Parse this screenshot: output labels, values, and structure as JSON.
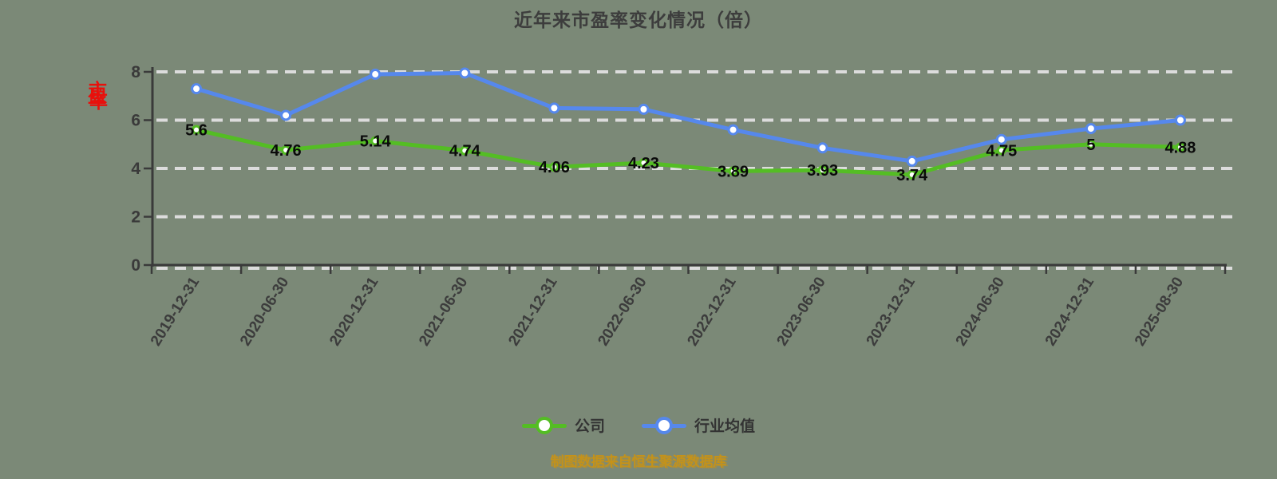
{
  "title": {
    "text": "近年来市盈率变化情况（倍）"
  },
  "y_axis_stamp": {
    "chars": [
      "市",
      "盈",
      "率"
    ],
    "color": "#e8100c"
  },
  "legend": {
    "items": [
      {
        "label": "公司",
        "color": "#54bd24"
      },
      {
        "label": "行业均值",
        "color": "#5688ec"
      }
    ]
  },
  "footer": {
    "source_note": "制图数据来自恒生聚源数据库"
  },
  "colors": {
    "background": "#7b8977",
    "company_line": "#54bd24",
    "industry_line": "#5688ec",
    "grid_dash": "#dcdcdc",
    "axis": "#3a3a3a",
    "title_text": "#3d3d3d",
    "data_label": "#0a0a0a",
    "source_text": "#c4921a",
    "stamp_red": "#e8100c"
  },
  "chart_data": {
    "type": "line",
    "title": "近年来市盈率变化情况（倍）",
    "categories": [
      "2019-12-31",
      "2020-06-30",
      "2020-12-31",
      "2021-06-30",
      "2021-12-31",
      "2022-06-30",
      "2022-12-31",
      "2023-06-30",
      "2023-12-31",
      "2024-06-30",
      "2024-12-31",
      "2025-08-30"
    ],
    "series": [
      {
        "name": "公司",
        "color": "#54bd24",
        "values": [
          5.6,
          4.76,
          5.14,
          4.74,
          4.06,
          4.23,
          3.89,
          3.93,
          3.74,
          4.75,
          5,
          4.88
        ],
        "labels_shown": true
      },
      {
        "name": "行业均值",
        "color": "#5688ec",
        "values": [
          7.3,
          6.2,
          7.9,
          7.95,
          6.5,
          6.45,
          5.6,
          4.85,
          4.3,
          5.2,
          5.65,
          6.0
        ],
        "labels_shown": false
      }
    ],
    "xlabel": "",
    "ylabel": "",
    "ylim": [
      0,
      8
    ],
    "yticks": [
      0,
      2,
      4,
      6,
      8
    ],
    "grid": "horizontal dashed",
    "legend_position": "bottom"
  }
}
